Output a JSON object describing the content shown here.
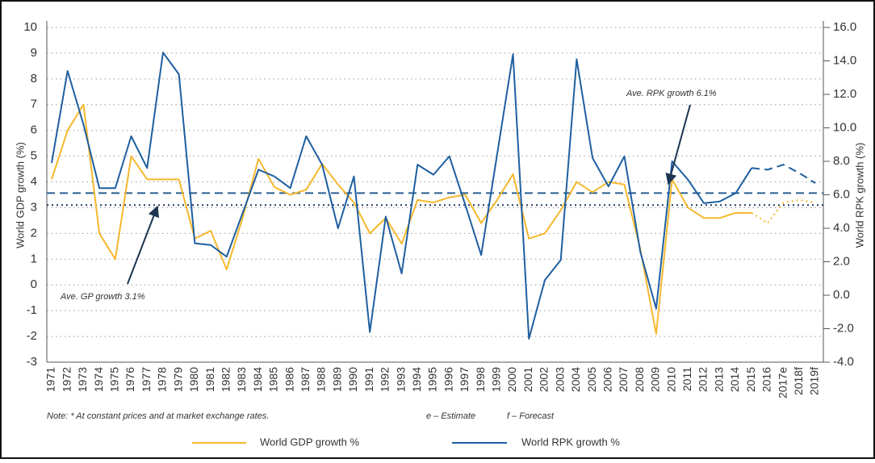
{
  "chart_data": {
    "type": "line",
    "y_label": "World GDP growth (%)",
    "y2_label": "World RPK growth (%)",
    "categories": [
      "1971",
      "1972",
      "1973",
      "1974",
      "1975",
      "1976",
      "1977",
      "1978",
      "1979",
      "1980",
      "1981",
      "1982",
      "1983",
      "1984",
      "1985",
      "1986",
      "1987",
      "1988",
      "1989",
      "1990",
      "1991",
      "1992",
      "1993",
      "1994",
      "1995",
      "1996",
      "1997",
      "1998",
      "1999",
      "2000",
      "2001",
      "2002",
      "2003",
      "2004",
      "2005",
      "2006",
      "2007",
      "2008",
      "2009",
      "2010",
      "2011",
      "2012",
      "2013",
      "2014",
      "2015",
      "2016",
      "2017e",
      "2018f",
      "2019f"
    ],
    "forecast_from": "2015",
    "series": [
      {
        "name": "World GDP growth %",
        "color": "#f5b82e",
        "forecast_dash": "dotted",
        "values": [
          4.1,
          6.0,
          7.0,
          2.0,
          1.0,
          5.0,
          4.1,
          4.1,
          4.1,
          1.8,
          2.1,
          0.6,
          2.6,
          4.9,
          3.8,
          3.5,
          3.7,
          4.7,
          3.9,
          3.2,
          2.0,
          2.6,
          1.6,
          3.3,
          3.2,
          3.4,
          3.5,
          2.4,
          3.3,
          4.3,
          1.8,
          2.0,
          2.9,
          4.0,
          3.6,
          4.0,
          3.9,
          1.4,
          -1.9,
          4.1,
          3.0,
          2.6,
          2.6,
          2.8,
          2.8,
          2.4,
          3.2,
          3.3,
          3.2
        ]
      },
      {
        "name": "World RPK growth %",
        "color": "#1f5fa0",
        "axis": "y2",
        "forecast_dash": "dashed",
        "values": [
          7.9,
          13.4,
          10.2,
          6.4,
          6.4,
          9.5,
          7.6,
          14.5,
          13.2,
          3.1,
          3.0,
          2.3,
          4.9,
          7.5,
          7.1,
          6.4,
          9.5,
          7.8,
          4.0,
          7.1,
          -2.2,
          4.7,
          1.3,
          7.8,
          7.2,
          8.3,
          5.4,
          2.4,
          8.4,
          14.4,
          -2.6,
          0.9,
          2.1,
          14.1,
          8.2,
          6.5,
          8.3,
          2.6,
          -0.8,
          8.0,
          6.9,
          5.5,
          5.6,
          6.1,
          7.6,
          7.5,
          7.8,
          7.3,
          6.7
        ]
      }
    ],
    "reference_lines": [
      {
        "label": "Ave. RPK growth 6.1%",
        "value": 6.1,
        "axis": "y2",
        "style": "dashed",
        "color": "#2a5f8f"
      },
      {
        "label": "Ave. GP growth 3.1%",
        "value": 3.1,
        "axis": "y",
        "style": "dotted",
        "color": "#1e3f66"
      }
    ],
    "ylim": [
      -3,
      10
    ],
    "yticks": [
      -3,
      -2,
      -1,
      0,
      1,
      2,
      3,
      4,
      5,
      6,
      7,
      8,
      9,
      10
    ],
    "y2lim": [
      -4,
      16
    ],
    "y2ticks": [
      {
        "value": -4,
        "label": "-4.0"
      },
      {
        "value": -2,
        "label": "-2.0"
      },
      {
        "value": 0,
        "label": "0.0"
      },
      {
        "value": 2,
        "label": "2.0"
      },
      {
        "value": 4,
        "label": "4.0"
      },
      {
        "value": 6,
        "label": "6.0"
      },
      {
        "value": 8,
        "label": "8.0"
      },
      {
        "value": 10,
        "label": "10.0"
      },
      {
        "value": 12,
        "label": "12.0"
      },
      {
        "value": 14,
        "label": "14.0"
      },
      {
        "value": 16,
        "label": "16.0"
      }
    ],
    "grid": true,
    "notes": [
      "Note: * At constant prices and at market exchange rates.",
      "e – Estimate",
      "f – Forecast"
    ]
  }
}
